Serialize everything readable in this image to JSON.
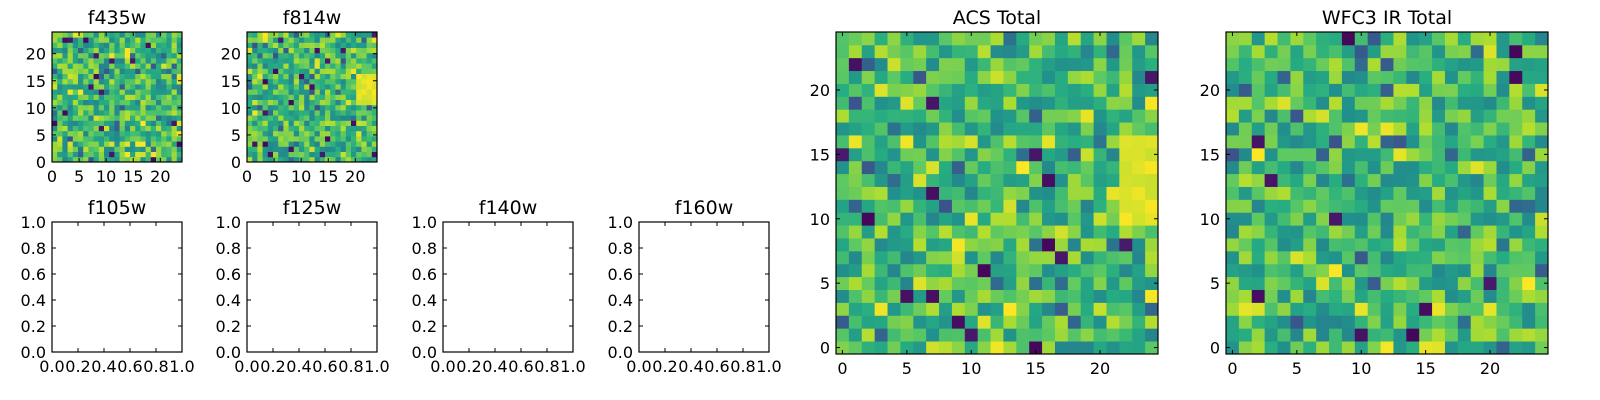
{
  "chart_data": [
    {
      "type": "heatmap",
      "title": "f435w",
      "grid_size": 25,
      "colormap": "viridis",
      "xlim": [
        0,
        24
      ],
      "ylim": [
        0,
        24
      ],
      "xticks": [
        0,
        5,
        10,
        15,
        20
      ],
      "yticks": [
        0,
        5,
        10,
        15,
        20
      ],
      "xtick_labels": [
        "0",
        "5",
        "10",
        "15",
        "20"
      ],
      "ytick_labels": [
        "0",
        "5",
        "10",
        "15",
        "20"
      ]
    },
    {
      "type": "heatmap",
      "title": "f814w",
      "grid_size": 25,
      "colormap": "viridis",
      "bright_region": {
        "x": [
          21,
          24
        ],
        "y": [
          11,
          16
        ]
      },
      "xlim": [
        0,
        24
      ],
      "ylim": [
        0,
        24
      ],
      "xticks": [
        0,
        5,
        10,
        15,
        20
      ],
      "yticks": [
        0,
        5,
        10,
        15,
        20
      ],
      "xtick_labels": [
        "0",
        "5",
        "10",
        "15",
        "20"
      ],
      "ytick_labels": [
        "0",
        "5",
        "10",
        "15",
        "20"
      ]
    },
    {
      "type": "heatmap",
      "title": "ACS Total",
      "grid_size": 25,
      "colormap": "viridis",
      "bright_region": {
        "x": [
          22,
          24
        ],
        "y": [
          10,
          16
        ]
      },
      "xlim": [
        -0.5,
        24.5
      ],
      "ylim": [
        -0.5,
        24.5
      ],
      "xticks": [
        0,
        5,
        10,
        15,
        20
      ],
      "yticks": [
        0,
        5,
        10,
        15,
        20
      ],
      "xtick_labels": [
        "0",
        "5",
        "10",
        "15",
        "20"
      ],
      "ytick_labels": [
        "0",
        "5",
        "10",
        "15",
        "20"
      ]
    },
    {
      "type": "heatmap",
      "title": "WFC3 IR Total",
      "grid_size": 25,
      "colormap": "viridis",
      "xlim": [
        -0.5,
        24.5
      ],
      "ylim": [
        -0.5,
        24.5
      ],
      "xticks": [
        0,
        5,
        10,
        15,
        20
      ],
      "yticks": [
        0,
        5,
        10,
        15,
        20
      ],
      "xtick_labels": [
        "0",
        "5",
        "10",
        "15",
        "20"
      ],
      "ytick_labels": [
        "0",
        "5",
        "10",
        "15",
        "20"
      ]
    },
    {
      "type": "scatter",
      "title": "f105w",
      "xlim": [
        0,
        1
      ],
      "ylim": [
        0,
        1
      ],
      "xtick_labels": [
        "0.0",
        "0.2",
        "0.4",
        "0.6",
        "0.8",
        "1.0"
      ],
      "ytick_labels": [
        "0.0",
        "0.2",
        "0.4",
        "0.6",
        "0.8",
        "1.0"
      ],
      "points": []
    },
    {
      "type": "scatter",
      "title": "f125w",
      "xlim": [
        0,
        1
      ],
      "ylim": [
        0,
        1
      ],
      "xtick_labels": [
        "0.0",
        "0.2",
        "0.4",
        "0.6",
        "0.8",
        "1.0"
      ],
      "ytick_labels": [
        "0.0",
        "0.2",
        "0.4",
        "0.6",
        "0.8",
        "1.0"
      ],
      "points": []
    },
    {
      "type": "scatter",
      "title": "f140w",
      "xlim": [
        0,
        1
      ],
      "ylim": [
        0,
        1
      ],
      "xtick_labels": [
        "0.0",
        "0.2",
        "0.4",
        "0.6",
        "0.8",
        "1.0"
      ],
      "ytick_labels": [
        "0.0",
        "0.2",
        "0.4",
        "0.6",
        "0.8",
        "1.0"
      ],
      "points": []
    },
    {
      "type": "scatter",
      "title": "f160w",
      "xlim": [
        0,
        1
      ],
      "ylim": [
        0,
        1
      ],
      "xtick_labels": [
        "0.0",
        "0.2",
        "0.4",
        "0.6",
        "0.8",
        "1.0"
      ],
      "ytick_labels": [
        "0.0",
        "0.2",
        "0.4",
        "0.6",
        "0.8",
        "1.0"
      ],
      "points": []
    }
  ]
}
